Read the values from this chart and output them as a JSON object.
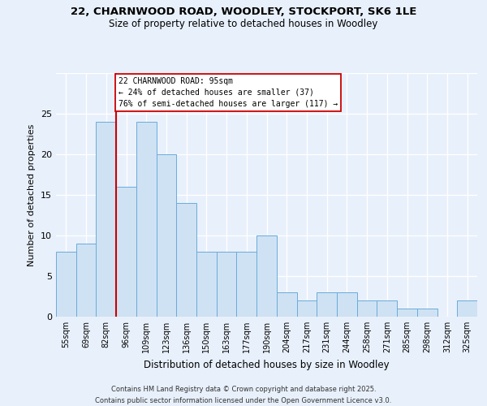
{
  "title1": "22, CHARNWOOD ROAD, WOODLEY, STOCKPORT, SK6 1LE",
  "title2": "Size of property relative to detached houses in Woodley",
  "xlabel": "Distribution of detached houses by size in Woodley",
  "ylabel": "Number of detached properties",
  "categories": [
    "55sqm",
    "69sqm",
    "82sqm",
    "96sqm",
    "109sqm",
    "123sqm",
    "136sqm",
    "150sqm",
    "163sqm",
    "177sqm",
    "190sqm",
    "204sqm",
    "217sqm",
    "231sqm",
    "244sqm",
    "258sqm",
    "271sqm",
    "285sqm",
    "298sqm",
    "312sqm",
    "325sqm"
  ],
  "values": [
    8,
    9,
    24,
    16,
    24,
    20,
    14,
    8,
    8,
    8,
    10,
    3,
    2,
    3,
    3,
    2,
    2,
    1,
    1,
    0,
    2
  ],
  "bar_color": "#cfe2f3",
  "bar_edge_color": "#6aabdc",
  "vline_x": 2.5,
  "vline_color": "#cc0000",
  "annotation_text": "22 CHARNWOOD ROAD: 95sqm\n← 24% of detached houses are smaller (37)\n76% of semi-detached houses are larger (117) →",
  "annotation_box_facecolor": "#ffffff",
  "annotation_box_edgecolor": "#cc0000",
  "ylim": [
    0,
    30
  ],
  "yticks": [
    0,
    5,
    10,
    15,
    20,
    25,
    30
  ],
  "ytick_labels": [
    "0",
    "5",
    "10",
    "15",
    "20",
    "25",
    ""
  ],
  "background_color": "#e8f0fb",
  "grid_color": "#ffffff",
  "footer": "Contains HM Land Registry data © Crown copyright and database right 2025.\nContains public sector information licensed under the Open Government Licence v3.0."
}
